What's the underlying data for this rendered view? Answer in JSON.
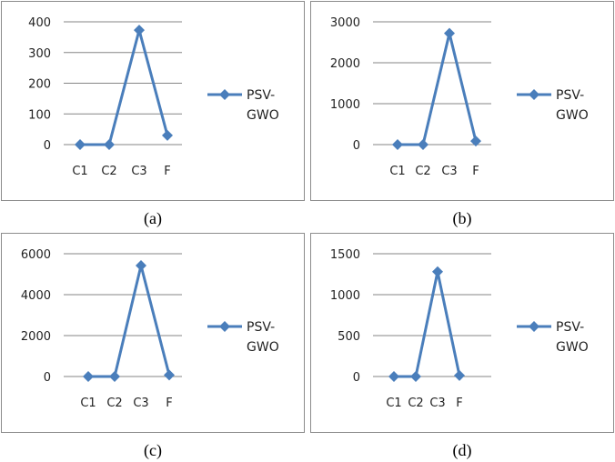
{
  "chart_data": [
    {
      "id": "a",
      "type": "line",
      "caption": "(a)",
      "categories": [
        "C1",
        "C2",
        "C3",
        "F"
      ],
      "series": [
        {
          "name": "PSV-GWO",
          "values": [
            0,
            0,
            373,
            30
          ]
        }
      ],
      "ylim": [
        0,
        400
      ],
      "yticks": [
        0,
        100,
        200,
        300,
        400
      ],
      "legend": "right",
      "grid": true
    },
    {
      "id": "b",
      "type": "line",
      "caption": "(b)",
      "categories": [
        "C1",
        "C2",
        "C3",
        "F"
      ],
      "series": [
        {
          "name": "PSV-GWO",
          "values": [
            0,
            0,
            2720,
            85
          ]
        }
      ],
      "ylim": [
        0,
        3000
      ],
      "yticks": [
        0,
        1000,
        2000,
        3000
      ],
      "legend": "right",
      "grid": true
    },
    {
      "id": "c",
      "type": "line",
      "caption": "(c)",
      "categories": [
        "C1",
        "C2",
        "C3",
        "F"
      ],
      "series": [
        {
          "name": "PSV-GWO",
          "values": [
            0,
            0,
            5420,
            70
          ]
        }
      ],
      "ylim": [
        0,
        6000
      ],
      "yticks": [
        0,
        2000,
        4000,
        6000
      ],
      "legend": "right",
      "grid": true
    },
    {
      "id": "d",
      "type": "line",
      "caption": "(d)",
      "categories": [
        "C1",
        "C2",
        "C3",
        "F"
      ],
      "series": [
        {
          "name": "PSV-GWO",
          "values": [
            0,
            0,
            1280,
            12
          ]
        }
      ],
      "ylim": [
        0,
        1500
      ],
      "yticks": [
        0,
        500,
        1000,
        1500
      ],
      "legend": "right",
      "grid": true
    }
  ],
  "colors": {
    "series": "#4a7ebb",
    "grid": "#868686",
    "border": "#8c8c8c"
  },
  "legend_lines": [
    "PSV-",
    "GWO"
  ]
}
